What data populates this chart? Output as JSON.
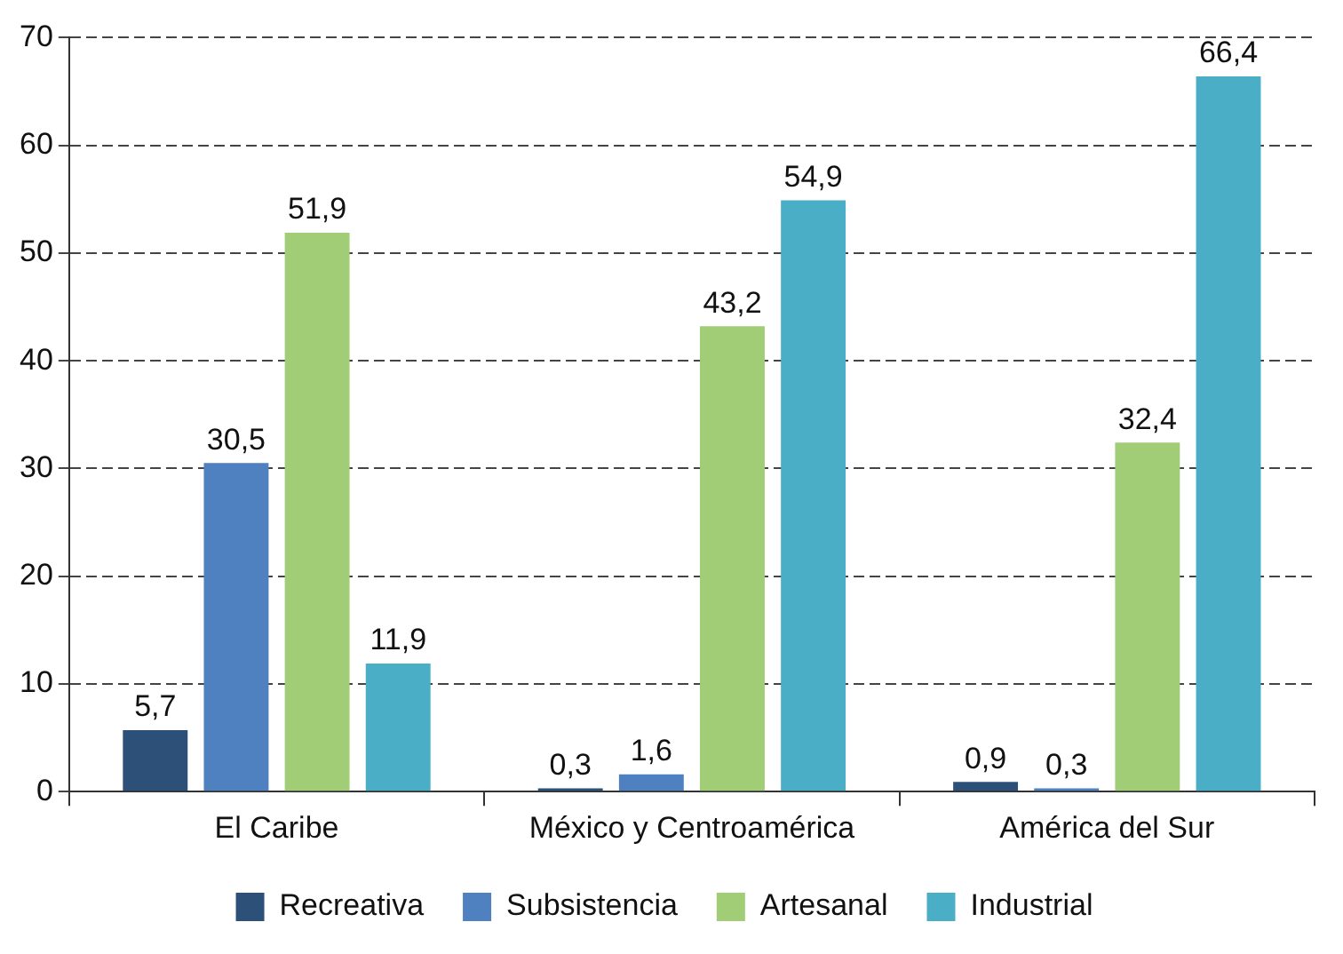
{
  "chart_data": {
    "type": "bar",
    "categories": [
      "El Caribe",
      "México y Centroamérica",
      "América del Sur"
    ],
    "series": [
      {
        "name": "Recreativa",
        "color": "#2c5077",
        "values": [
          5.7,
          0.3,
          0.9
        ],
        "value_labels": [
          "5,7",
          "0,3",
          "0,9"
        ]
      },
      {
        "name": "Subsistencia",
        "color": "#4f81c0",
        "values": [
          30.5,
          1.6,
          0.3
        ],
        "value_labels": [
          "30,5",
          "1,6",
          "0,3"
        ]
      },
      {
        "name": "Artesanal",
        "color": "#a0cd75",
        "values": [
          51.9,
          43.2,
          32.4
        ],
        "value_labels": [
          "51,9",
          "43,2",
          "32,4"
        ]
      },
      {
        "name": "Industrial",
        "color": "#4aafc6",
        "values": [
          11.9,
          54.9,
          66.4
        ],
        "value_labels": [
          "11,9",
          "54,9",
          "66,4"
        ]
      }
    ],
    "ylim": [
      0,
      70
    ],
    "yticks": [
      0,
      10,
      20,
      30,
      40,
      50,
      60,
      70
    ],
    "grid": "y",
    "line_style": "dashed",
    "legend": "bottom"
  }
}
